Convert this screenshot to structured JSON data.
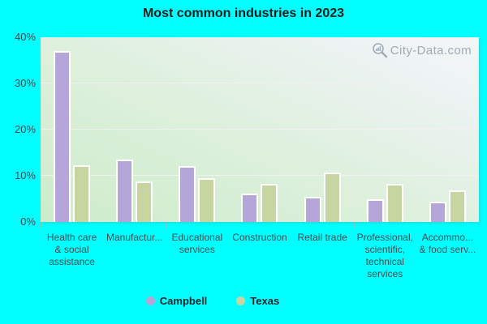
{
  "title": "Most common industries in 2023",
  "watermark": {
    "text": "City-Data.com",
    "icon": "magnifier-chart-icon"
  },
  "colors": {
    "background": "#00ffff",
    "campbell_bar": "#b5a6d9",
    "texas_bar": "#c7d6a0",
    "bar_border": "#ffffff",
    "plot_gradient_bottom_left": "#cdeccb",
    "plot_gradient_top_right": "#f3f6f7",
    "gridline": "#f6f0f6",
    "axis_text": "#464b4d",
    "title_text": "#1c1c1c",
    "watermark_text": "#8d99a3"
  },
  "chart_data": {
    "type": "bar",
    "title": "Most common industries in 2023",
    "categories": [
      "Health care & social assistance",
      "Manufactur...",
      "Educational services",
      "Construction",
      "Retail trade",
      "Professional, scientific, technical services",
      "Accommo... & food serv..."
    ],
    "categories_display": [
      [
        "Health care",
        "& social",
        "assistance"
      ],
      [
        "Manufactur..."
      ],
      [
        "Educational",
        "services"
      ],
      [
        "Construction"
      ],
      [
        "Retail trade"
      ],
      [
        "Professional,",
        "scientific,",
        "technical",
        "services"
      ],
      [
        "Accommo...",
        "& food serv..."
      ]
    ],
    "series": [
      {
        "name": "Campbell",
        "color": "#b5a6d9",
        "values": [
          37.0,
          13.5,
          12.1,
          6.2,
          5.5,
          5.0,
          4.4
        ]
      },
      {
        "name": "Texas",
        "color": "#c7d6a0",
        "values": [
          12.2,
          8.7,
          9.5,
          8.2,
          10.7,
          8.2,
          6.9
        ]
      }
    ],
    "yticks": [
      "0%",
      "10%",
      "20%",
      "30%",
      "40%"
    ],
    "ylim": [
      0,
      40
    ],
    "grid": true,
    "legend_position": "bottom"
  }
}
